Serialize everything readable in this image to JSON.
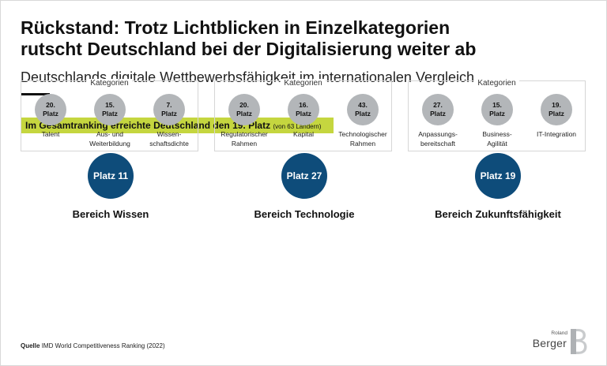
{
  "header": {
    "title_line1": "Rückstand: Trotz Lichtblicken in Einzelkategorien",
    "title_line2": "rutscht Deutschland bei der Digitalisierung weiter ab",
    "subtitle": "Deutschlands digitale Wettbewerbsfähigkeit im internationalen Vergleich"
  },
  "banner": {
    "text": "Im Gesamtranking erreichte Deutschland den 19. Platz",
    "note": "(von 63 Ländern)",
    "color": "#c5d63f"
  },
  "categories_label": "Kategorien",
  "areas": [
    {
      "rank": "Platz 11",
      "name": "Bereich Wissen",
      "categories": [
        {
          "rank": "20.",
          "unit": "Platz",
          "name": "Talent"
        },
        {
          "rank": "15.",
          "unit": "Platz",
          "name": "Aus- und\nWeiterbildung"
        },
        {
          "rank": "7.",
          "unit": "Platz",
          "name": "Wissen-\nschaftsdichte"
        }
      ]
    },
    {
      "rank": "Platz 27",
      "name": "Bereich Technologie",
      "categories": [
        {
          "rank": "20.",
          "unit": "Platz",
          "name": "Regulatorischer\nRahmen"
        },
        {
          "rank": "16.",
          "unit": "Platz",
          "name": "Kapital"
        },
        {
          "rank": "43.",
          "unit": "Platz",
          "name": "Technologischer\nRahmen"
        }
      ]
    },
    {
      "rank": "Platz 19",
      "name": "Bereich Zukunftsfähigkeit",
      "categories": [
        {
          "rank": "27.",
          "unit": "Platz",
          "name": "Anpassungs-\nbereitschaft"
        },
        {
          "rank": "15.",
          "unit": "Platz",
          "name": "Business-\nAgilität"
        },
        {
          "rank": "19.",
          "unit": "Platz",
          "name": "IT-Integration"
        }
      ]
    }
  ],
  "source": {
    "label": "Quelle",
    "text": "IMD World Competitiveness Ranking (2022)"
  },
  "logo": {
    "line1": "Roland",
    "line2": "Berger",
    "icon": "roland-berger-b-logo"
  },
  "colors": {
    "area_circle": "#0e4c7a",
    "category_circle": "#b3b6b9"
  }
}
